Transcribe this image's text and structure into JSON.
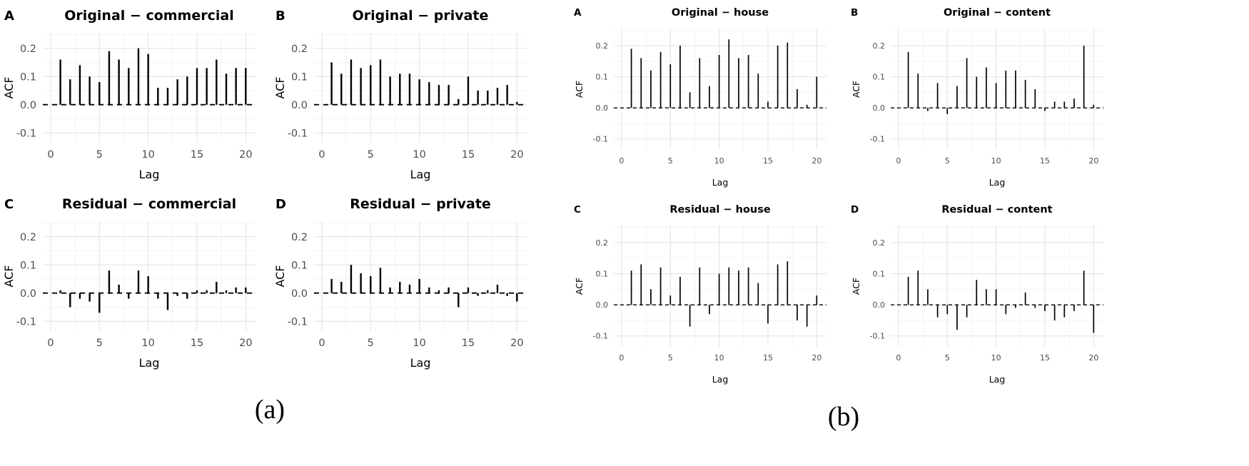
{
  "captions": {
    "a": "(a)",
    "b": "(b)"
  },
  "chart_data": [
    {
      "group": "a",
      "panel": "A",
      "type": "bar",
      "title": "Original − commercial",
      "xlabel": "Lag",
      "ylabel": "ACF",
      "x": [
        1,
        2,
        3,
        4,
        5,
        6,
        7,
        8,
        9,
        10,
        11,
        12,
        13,
        14,
        15,
        16,
        17,
        18,
        19,
        20
      ],
      "values": [
        0.16,
        0.09,
        0.14,
        0.1,
        0.08,
        0.19,
        0.16,
        0.13,
        0.2,
        0.18,
        0.06,
        0.06,
        0.09,
        0.1,
        0.13,
        0.13,
        0.16,
        0.11,
        0.13,
        0.13
      ],
      "xticks": [
        0,
        5,
        10,
        15,
        20
      ],
      "yticks": [
        -0.1,
        0.0,
        0.1,
        0.2
      ],
      "xlim": [
        -0.8,
        21
      ],
      "ylim": [
        -0.135,
        0.255
      ],
      "zero_line": "dashed",
      "grid": true,
      "legend": false
    },
    {
      "group": "a",
      "panel": "B",
      "type": "bar",
      "title": "Original − private",
      "xlabel": "Lag",
      "ylabel": "ACF",
      "x": [
        1,
        2,
        3,
        4,
        5,
        6,
        7,
        8,
        9,
        10,
        11,
        12,
        13,
        14,
        15,
        16,
        17,
        18,
        19,
        20
      ],
      "values": [
        0.15,
        0.11,
        0.16,
        0.13,
        0.14,
        0.16,
        0.1,
        0.11,
        0.11,
        0.09,
        0.08,
        0.07,
        0.07,
        0.02,
        0.1,
        0.05,
        0.05,
        0.06,
        0.07,
        0.01
      ],
      "xticks": [
        0,
        5,
        10,
        15,
        20
      ],
      "yticks": [
        -0.1,
        0.0,
        0.1,
        0.2
      ],
      "xlim": [
        -0.8,
        21
      ],
      "ylim": [
        -0.135,
        0.255
      ],
      "zero_line": "dashed",
      "grid": true,
      "legend": false
    },
    {
      "group": "a",
      "panel": "C",
      "type": "bar",
      "title": "Residual − commercial",
      "xlabel": "Lag",
      "ylabel": "ACF",
      "x": [
        1,
        2,
        3,
        4,
        5,
        6,
        7,
        8,
        9,
        10,
        11,
        12,
        13,
        14,
        15,
        16,
        17,
        18,
        19,
        20
      ],
      "values": [
        0.01,
        -0.05,
        -0.02,
        -0.03,
        -0.07,
        0.08,
        0.03,
        -0.02,
        0.08,
        0.06,
        -0.02,
        -0.06,
        -0.01,
        -0.02,
        0.01,
        0.01,
        0.04,
        0.01,
        0.02,
        0.02
      ],
      "xticks": [
        0,
        5,
        10,
        15,
        20
      ],
      "yticks": [
        -0.1,
        0.0,
        0.1,
        0.2
      ],
      "xlim": [
        -0.8,
        21
      ],
      "ylim": [
        -0.135,
        0.255
      ],
      "zero_line": "dashed",
      "grid": true,
      "legend": false
    },
    {
      "group": "a",
      "panel": "D",
      "type": "bar",
      "title": "Residual − private",
      "xlabel": "Lag",
      "ylabel": "ACF",
      "x": [
        1,
        2,
        3,
        4,
        5,
        6,
        7,
        8,
        9,
        10,
        11,
        12,
        13,
        14,
        15,
        16,
        17,
        18,
        19,
        20
      ],
      "values": [
        0.05,
        0.04,
        0.1,
        0.07,
        0.06,
        0.09,
        0.02,
        0.04,
        0.03,
        0.05,
        0.02,
        0.01,
        0.02,
        -0.05,
        0.02,
        -0.01,
        0.01,
        0.03,
        -0.01,
        -0.03
      ],
      "xticks": [
        0,
        5,
        10,
        15,
        20
      ],
      "yticks": [
        -0.1,
        0.0,
        0.1,
        0.2
      ],
      "xlim": [
        -0.8,
        21
      ],
      "ylim": [
        -0.135,
        0.255
      ],
      "zero_line": "dashed",
      "grid": true,
      "legend": false
    },
    {
      "group": "b",
      "panel": "A",
      "type": "bar",
      "title": "Original − house",
      "xlabel": "Lag",
      "ylabel": "ACF",
      "x": [
        1,
        2,
        3,
        4,
        5,
        6,
        7,
        8,
        9,
        10,
        11,
        12,
        13,
        14,
        15,
        16,
        17,
        18,
        19,
        20
      ],
      "values": [
        0.19,
        0.16,
        0.12,
        0.18,
        0.14,
        0.2,
        0.05,
        0.16,
        0.07,
        0.17,
        0.22,
        0.16,
        0.17,
        0.11,
        0.02,
        0.2,
        0.21,
        0.06,
        0.01,
        0.1
      ],
      "xticks": [
        0,
        5,
        10,
        15,
        20
      ],
      "yticks": [
        -0.1,
        0.0,
        0.1,
        0.2
      ],
      "xlim": [
        -0.8,
        21
      ],
      "ylim": [
        -0.135,
        0.255
      ],
      "zero_line": "dashed",
      "grid": true,
      "legend": false
    },
    {
      "group": "b",
      "panel": "B",
      "type": "bar",
      "title": "Original − content",
      "xlabel": "Lag",
      "ylabel": "ACF",
      "x": [
        1,
        2,
        3,
        4,
        5,
        6,
        7,
        8,
        9,
        10,
        11,
        12,
        13,
        14,
        15,
        16,
        17,
        18,
        19,
        20
      ],
      "values": [
        0.18,
        0.11,
        -0.01,
        0.08,
        -0.02,
        0.07,
        0.16,
        0.1,
        0.13,
        0.08,
        0.12,
        0.12,
        0.09,
        0.06,
        -0.01,
        0.02,
        0.02,
        0.03,
        0.2,
        0.01
      ],
      "xticks": [
        0,
        5,
        10,
        15,
        20
      ],
      "yticks": [
        -0.1,
        0.0,
        0.1,
        0.2
      ],
      "xlim": [
        -0.8,
        21
      ],
      "ylim": [
        -0.135,
        0.255
      ],
      "zero_line": "dashed",
      "grid": true,
      "legend": false
    },
    {
      "group": "b",
      "panel": "C",
      "type": "bar",
      "title": "Residual − house",
      "xlabel": "Lag",
      "ylabel": "ACF",
      "x": [
        1,
        2,
        3,
        4,
        5,
        6,
        7,
        8,
        9,
        10,
        11,
        12,
        13,
        14,
        15,
        16,
        17,
        18,
        19,
        20
      ],
      "values": [
        0.11,
        0.13,
        0.05,
        0.12,
        0.03,
        0.09,
        -0.07,
        0.12,
        -0.03,
        0.1,
        0.12,
        0.11,
        0.12,
        0.07,
        -0.06,
        0.13,
        0.14,
        -0.05,
        -0.07,
        0.03
      ],
      "xticks": [
        0,
        5,
        10,
        15,
        20
      ],
      "yticks": [
        -0.1,
        0.0,
        0.1,
        0.2
      ],
      "xlim": [
        -0.8,
        21
      ],
      "ylim": [
        -0.135,
        0.255
      ],
      "zero_line": "dashed",
      "grid": true,
      "legend": false
    },
    {
      "group": "b",
      "panel": "D",
      "type": "bar",
      "title": "Residual − content",
      "xlabel": "Lag",
      "ylabel": "ACF",
      "x": [
        1,
        2,
        3,
        4,
        5,
        6,
        7,
        8,
        9,
        10,
        11,
        12,
        13,
        14,
        15,
        16,
        17,
        18,
        19,
        20
      ],
      "values": [
        0.09,
        0.11,
        0.05,
        -0.04,
        -0.03,
        -0.08,
        -0.04,
        0.08,
        0.05,
        0.05,
        -0.03,
        -0.01,
        0.04,
        -0.01,
        -0.02,
        -0.05,
        -0.04,
        -0.02,
        0.11,
        -0.09
      ],
      "xticks": [
        0,
        5,
        10,
        15,
        20
      ],
      "yticks": [
        -0.1,
        0.0,
        0.1,
        0.2
      ],
      "xlim": [
        -0.8,
        21
      ],
      "ylim": [
        -0.135,
        0.255
      ],
      "zero_line": "dashed",
      "grid": true,
      "legend": false
    }
  ]
}
